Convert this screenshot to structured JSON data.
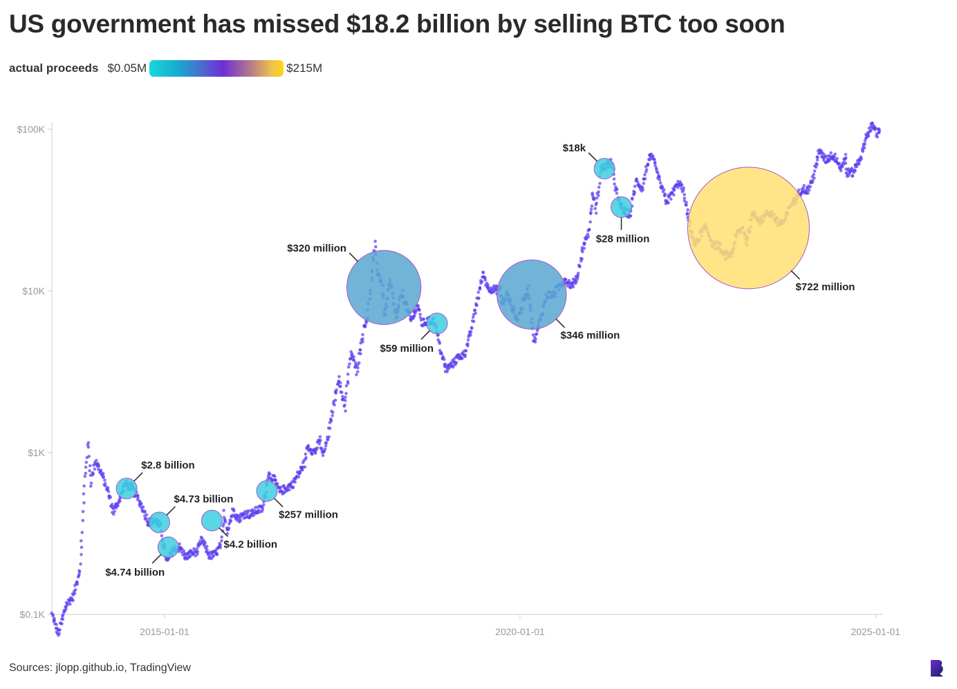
{
  "title": "US government has missed $18.2 billion by selling BTC too soon",
  "legend": {
    "title": "actual proceeds",
    "min_label": "$0.05M",
    "max_label": "$215M",
    "colors": [
      "#16d9d9",
      "#18a8cf",
      "#4a6fd0",
      "#6d2fd6",
      "#b4798a",
      "#f0c54a",
      "#ffd21a"
    ]
  },
  "source": "Sources: jlopp.github.io, TradingView",
  "colors": {
    "price_dots": "#5b3ff0",
    "bubble_stroke": "#a855c8",
    "axis": "#dddddd"
  },
  "chart_data": {
    "type": "scatter",
    "y_scale": "log",
    "ylim": [
      100,
      100000
    ],
    "xlim": [
      "2013-06-01",
      "2025-02-01"
    ],
    "y_ticks": [
      100,
      1000,
      10000,
      100000
    ],
    "y_tick_labels": [
      "$0.1K",
      "$1K",
      "$10K",
      "$100K"
    ],
    "x_ticks": [
      "2015-01-01",
      "2020-01-01",
      "2025-01-01"
    ],
    "x_tick_labels": [
      "2015-01-01",
      "2020-01-01",
      "2025-01-01"
    ],
    "price_series": [
      [
        "2013-06-01",
        100
      ],
      [
        "2013-07-05",
        75
      ],
      [
        "2013-08-15",
        115
      ],
      [
        "2013-09-20",
        130
      ],
      [
        "2013-10-25",
        200
      ],
      [
        "2013-11-18",
        700
      ],
      [
        "2013-12-04",
        1150
      ],
      [
        "2013-12-20",
        650
      ],
      [
        "2014-01-10",
        900
      ],
      [
        "2014-02-10",
        750
      ],
      [
        "2014-03-15",
        580
      ],
      [
        "2014-04-12",
        430
      ],
      [
        "2014-05-20",
        530
      ],
      [
        "2014-06-10",
        640
      ],
      [
        "2014-07-15",
        610
      ],
      [
        "2014-08-10",
        540
      ],
      [
        "2014-09-10",
        460
      ],
      [
        "2014-10-10",
        370
      ],
      [
        "2014-11-15",
        380
      ],
      [
        "2014-12-10",
        350
      ],
      [
        "2015-01-14",
        210
      ],
      [
        "2015-02-15",
        250
      ],
      [
        "2015-03-20",
        260
      ],
      [
        "2015-04-20",
        225
      ],
      [
        "2015-05-20",
        240
      ],
      [
        "2015-06-20",
        245
      ],
      [
        "2015-07-10",
        290
      ],
      [
        "2015-08-20",
        230
      ],
      [
        "2015-09-20",
        235
      ],
      [
        "2015-10-20",
        270
      ],
      [
        "2015-11-04",
        420
      ],
      [
        "2015-11-20",
        330
      ],
      [
        "2015-12-20",
        440
      ],
      [
        "2016-01-15",
        390
      ],
      [
        "2016-02-20",
        420
      ],
      [
        "2016-03-20",
        415
      ],
      [
        "2016-04-20",
        440
      ],
      [
        "2016-05-20",
        450
      ],
      [
        "2016-06-17",
        740
      ],
      [
        "2016-07-20",
        670
      ],
      [
        "2016-08-15",
        575
      ],
      [
        "2016-09-20",
        605
      ],
      [
        "2016-10-20",
        640
      ],
      [
        "2016-11-20",
        740
      ],
      [
        "2016-12-20",
        860
      ],
      [
        "2017-01-05",
        1100
      ],
      [
        "2017-02-10",
        1000
      ],
      [
        "2017-03-10",
        1200
      ],
      [
        "2017-03-25",
        950
      ],
      [
        "2017-04-20",
        1250
      ],
      [
        "2017-05-20",
        2000
      ],
      [
        "2017-06-12",
        2900
      ],
      [
        "2017-07-16",
        1900
      ],
      [
        "2017-08-15",
        4200
      ],
      [
        "2017-09-15",
        3200
      ],
      [
        "2017-10-20",
        5800
      ],
      [
        "2017-11-10",
        7000
      ],
      [
        "2017-12-17",
        19200
      ],
      [
        "2017-12-30",
        13000
      ],
      [
        "2018-01-20",
        11500
      ],
      [
        "2018-02-06",
        6900
      ],
      [
        "2018-03-05",
        11500
      ],
      [
        "2018-04-05",
        6800
      ],
      [
        "2018-05-05",
        9800
      ],
      [
        "2018-06-20",
        6500
      ],
      [
        "2018-07-25",
        8200
      ],
      [
        "2018-08-15",
        6300
      ],
      [
        "2018-09-20",
        6500
      ],
      [
        "2018-10-20",
        6500
      ],
      [
        "2018-11-20",
        4300
      ],
      [
        "2018-12-15",
        3250
      ],
      [
        "2019-01-20",
        3550
      ],
      [
        "2019-02-20",
        3900
      ],
      [
        "2019-03-20",
        4050
      ],
      [
        "2019-04-20",
        5300
      ],
      [
        "2019-05-20",
        8000
      ],
      [
        "2019-06-26",
        12900
      ],
      [
        "2019-07-20",
        10500
      ],
      [
        "2019-08-20",
        10200
      ],
      [
        "2019-09-20",
        10100
      ],
      [
        "2019-10-01",
        8300
      ],
      [
        "2019-10-26",
        9500
      ],
      [
        "2019-12-18",
        6600
      ],
      [
        "2020-01-20",
        8700
      ],
      [
        "2020-02-13",
        10300
      ],
      [
        "2020-03-13",
        4800
      ],
      [
        "2020-04-20",
        7100
      ],
      [
        "2020-05-20",
        9500
      ],
      [
        "2020-06-20",
        9400
      ],
      [
        "2020-07-28",
        11000
      ],
      [
        "2020-08-20",
        11800
      ],
      [
        "2020-09-20",
        10800
      ],
      [
        "2020-10-20",
        11900
      ],
      [
        "2020-11-20",
        18500
      ],
      [
        "2020-12-20",
        23500
      ],
      [
        "2021-01-08",
        40000
      ],
      [
        "2021-01-25",
        32000
      ],
      [
        "2021-02-20",
        57000
      ],
      [
        "2021-03-15",
        58500
      ],
      [
        "2021-04-14",
        63000
      ],
      [
        "2021-05-19",
        36000
      ],
      [
        "2021-06-22",
        30500
      ],
      [
        "2021-07-20",
        30000
      ],
      [
        "2021-08-20",
        48000
      ],
      [
        "2021-09-20",
        43000
      ],
      [
        "2021-10-20",
        64000
      ],
      [
        "2021-11-10",
        67500
      ],
      [
        "2021-12-20",
        47000
      ],
      [
        "2022-01-24",
        35500
      ],
      [
        "2022-02-20",
        40000
      ],
      [
        "2022-03-28",
        47000
      ],
      [
        "2022-04-20",
        41000
      ],
      [
        "2022-05-12",
        29000
      ],
      [
        "2022-06-18",
        19000
      ],
      [
        "2022-07-20",
        23000
      ],
      [
        "2022-08-15",
        24500
      ],
      [
        "2022-09-20",
        19000
      ],
      [
        "2022-10-20",
        19200
      ],
      [
        "2022-11-10",
        16500
      ],
      [
        "2022-12-20",
        16800
      ],
      [
        "2023-01-20",
        22500
      ],
      [
        "2023-02-20",
        24500
      ],
      [
        "2023-03-10",
        20000
      ],
      [
        "2023-04-14",
        30500
      ],
      [
        "2023-05-20",
        27000
      ],
      [
        "2023-06-25",
        30500
      ],
      [
        "2023-07-20",
        30000
      ],
      [
        "2023-08-20",
        26000
      ],
      [
        "2023-09-20",
        27000
      ],
      [
        "2023-10-25",
        34500
      ],
      [
        "2023-11-20",
        37000
      ],
      [
        "2023-12-20",
        43500
      ],
      [
        "2024-01-20",
        41500
      ],
      [
        "2024-02-20",
        52000
      ],
      [
        "2024-03-14",
        73000
      ],
      [
        "2024-04-20",
        64500
      ],
      [
        "2024-05-20",
        69000
      ],
      [
        "2024-06-20",
        65000
      ],
      [
        "2024-07-05",
        56500
      ],
      [
        "2024-07-29",
        68000
      ],
      [
        "2024-08-05",
        54000
      ],
      [
        "2024-09-06",
        54000
      ],
      [
        "2024-10-20",
        69000
      ],
      [
        "2024-11-13",
        90000
      ],
      [
        "2024-12-17",
        106000
      ],
      [
        "2025-01-10",
        94000
      ],
      [
        "2025-01-25",
        104000
      ]
    ],
    "sales": [
      {
        "date": "2014-06-20",
        "price": 600,
        "proceeds_musd": 4.0,
        "color": "#3fcfe0",
        "label": "$2.8 billion",
        "label_pos": "top-right"
      },
      {
        "date": "2014-12-05",
        "price": 370,
        "proceeds_musd": 4.0,
        "color": "#3fcfe0",
        "label": "$4.73 billion",
        "label_pos": "top-right"
      },
      {
        "date": "2015-01-20",
        "price": 260,
        "proceeds_musd": 2.5,
        "color": "#3fcfe0",
        "label": "$4.74 billion",
        "label_pos": "bottom-left"
      },
      {
        "date": "2015-09-01",
        "price": 380,
        "proceeds_musd": 3.0,
        "color": "#3fcfe0",
        "label": "$4.2 billion",
        "label_pos": "bottom-right"
      },
      {
        "date": "2016-06-10",
        "price": 580,
        "proceeds_musd": 0.7,
        "color": "#3fcfe0",
        "label": "$257 million",
        "label_pos": "bottom-right"
      },
      {
        "date": "2018-02-01",
        "price": 10500,
        "proceeds_musd": 80,
        "color": "#5aa8d2",
        "label": "$320 million",
        "label_pos": "top-left"
      },
      {
        "date": "2018-11-01",
        "price": 6300,
        "proceeds_musd": 0.6,
        "color": "#3fcfe0",
        "label": "$59 million",
        "label_pos": "bottom-left"
      },
      {
        "date": "2020-03-01",
        "price": 9500,
        "proceeds_musd": 70,
        "color": "#5aa8d2",
        "label": "$346 million",
        "label_pos": "bottom-right"
      },
      {
        "date": "2021-03-10",
        "price": 57000,
        "proceeds_musd": 0.5,
        "color": "#3fcfe0",
        "label": "$18k",
        "label_pos": "top-left"
      },
      {
        "date": "2021-06-05",
        "price": 33000,
        "proceeds_musd": 2.6,
        "color": "#3fcfe0",
        "label": "$28 million",
        "label_pos": "bottom"
      },
      {
        "date": "2023-03-20",
        "price": 24500,
        "proceeds_musd": 215,
        "color": "#ffe173",
        "label": "$722 million",
        "label_pos": "bottom-right"
      }
    ]
  }
}
